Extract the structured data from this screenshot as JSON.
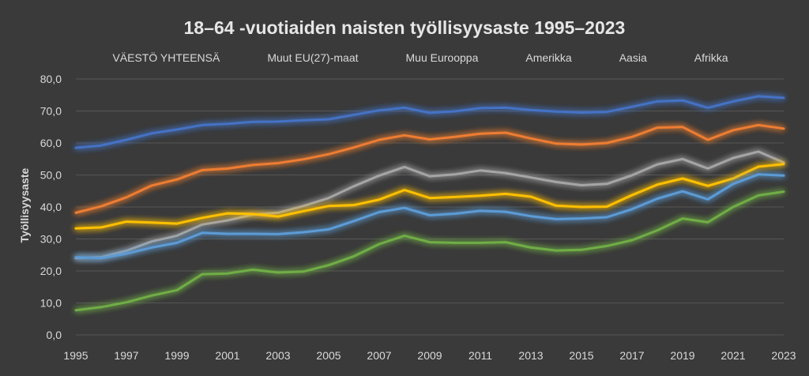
{
  "chart_data": {
    "type": "line",
    "title": "18–64 -vuotiaiden naisten työllisyysaste 1995–2023",
    "ylabel": "Työllisyysaste",
    "xlabel": "",
    "ylim": [
      0,
      80
    ],
    "y_ticks": [
      "0,0",
      "10,0",
      "20,0",
      "30,0",
      "40,0",
      "50,0",
      "60,0",
      "70,0",
      "80,0"
    ],
    "x_tick_labels": [
      "1995",
      "1997",
      "1999",
      "2001",
      "2003",
      "2005",
      "2007",
      "2009",
      "2011",
      "2013",
      "2015",
      "2017",
      "2019",
      "2021",
      "2023"
    ],
    "x": [
      1995,
      1996,
      1997,
      1998,
      1999,
      2000,
      2001,
      2002,
      2003,
      2004,
      2005,
      2006,
      2007,
      2008,
      2009,
      2010,
      2011,
      2012,
      2013,
      2014,
      2015,
      2016,
      2017,
      2018,
      2019,
      2020,
      2021,
      2022,
      2023
    ],
    "grid": true,
    "legend_position": "top",
    "series": [
      {
        "name": "VÄESTÖ YHTEENSÄ",
        "color": "#4472c4",
        "values": [
          58.5,
          59.2,
          61.0,
          63.0,
          64.2,
          65.6,
          66.0,
          66.6,
          66.7,
          67.1,
          67.4,
          68.8,
          70.2,
          71.0,
          69.4,
          69.9,
          70.9,
          71.0,
          70.3,
          69.8,
          69.5,
          69.7,
          71.3,
          73.0,
          73.3,
          71.0,
          73.0,
          74.6,
          74.1
        ]
      },
      {
        "name": "Muut EU(27)-maat",
        "color": "#ed7d31",
        "values": [
          38.2,
          40.2,
          43.0,
          46.7,
          48.6,
          51.5,
          52.0,
          53.1,
          53.7,
          54.9,
          56.5,
          58.6,
          61.0,
          62.4,
          61.1,
          61.9,
          62.9,
          63.2,
          61.4,
          59.8,
          59.5,
          60.0,
          61.9,
          64.8,
          65.0,
          61.0,
          64.0,
          65.6,
          64.5
        ]
      },
      {
        "name": "Muu Eurooppa",
        "color": "#a5a5a5",
        "values": [
          24.0,
          24.3,
          26.3,
          29.2,
          31.0,
          34.5,
          35.8,
          37.6,
          38.2,
          40.3,
          42.8,
          46.5,
          49.8,
          52.5,
          49.6,
          50.2,
          51.4,
          50.6,
          49.2,
          47.8,
          46.8,
          47.2,
          49.9,
          53.3,
          55.0,
          52.0,
          55.3,
          57.3,
          53.9
        ]
      },
      {
        "name": "Amerikka",
        "color": "#ffc000",
        "values": [
          33.3,
          33.6,
          35.4,
          35.1,
          34.8,
          36.6,
          38.0,
          37.8,
          37.0,
          38.7,
          40.3,
          40.6,
          42.3,
          45.3,
          42.8,
          43.1,
          43.5,
          44.1,
          43.2,
          40.4,
          40.0,
          40.1,
          43.7,
          47.0,
          48.9,
          46.6,
          48.9,
          52.6,
          53.4
        ]
      },
      {
        "name": "Aasia",
        "color": "#5b9bd5",
        "values": [
          24.3,
          24.0,
          25.4,
          27.3,
          28.8,
          31.9,
          31.6,
          31.6,
          31.5,
          32.1,
          33.0,
          35.6,
          38.4,
          39.7,
          37.4,
          37.9,
          38.8,
          38.5,
          37.1,
          36.2,
          36.4,
          36.8,
          39.3,
          42.6,
          44.9,
          42.4,
          47.2,
          50.2,
          49.8
        ]
      },
      {
        "name": "Afrikka",
        "color": "#70ad47",
        "values": [
          7.7,
          8.7,
          10.2,
          12.3,
          14.0,
          19.0,
          19.2,
          20.4,
          19.5,
          19.8,
          21.8,
          24.6,
          28.4,
          31.0,
          29.0,
          28.8,
          28.8,
          29.0,
          27.3,
          26.4,
          26.6,
          27.8,
          29.6,
          32.7,
          36.4,
          35.2,
          40.0,
          43.6,
          44.8
        ]
      }
    ]
  }
}
